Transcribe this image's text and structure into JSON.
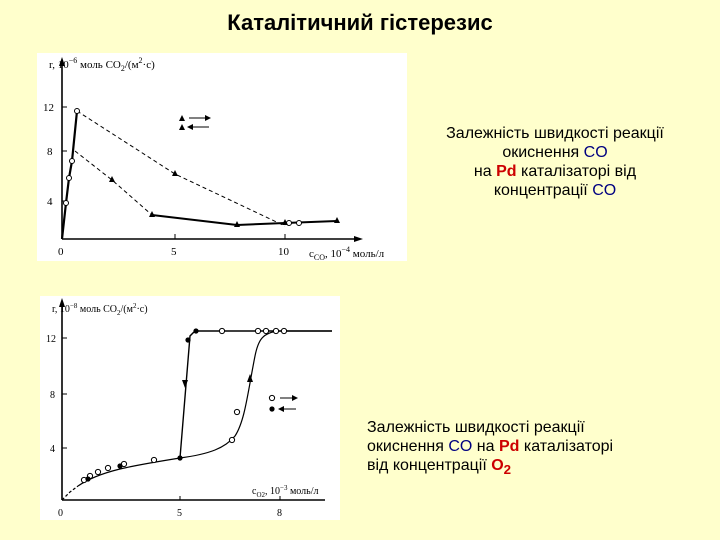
{
  "title": "Каталітичний гістерезис",
  "caption1": {
    "line1": "Залежність швидкості реакції",
    "line2a": "окиснення ",
    "co_a": "CO",
    "line3a": "на ",
    "pd": "Pd",
    "line3b": " каталізаторі від",
    "line4a": "концентрації ",
    "co_b": "CO"
  },
  "caption2": {
    "line1": "Залежність швидкості реакції",
    "line2a": "окиснення ",
    "co": "CO",
    "line2b": " на ",
    "pd": "Pd",
    "line2c": " каталізаторі",
    "line3a": "від концентрації ",
    "o2": "O",
    "o2_sub": "2"
  },
  "chart_data": [
    {
      "type": "line",
      "ylabel": "r, 10⁻⁶ моль CO₂/(м²·с)",
      "xlabel": "c_CO, 10⁻⁴ моль/л",
      "xlim": [
        0,
        13
      ],
      "ylim": [
        0,
        14
      ],
      "x_ticks": [
        0,
        5,
        10
      ],
      "y_ticks": [
        4,
        8,
        12
      ],
      "legend": {
        "placement": "top-right",
        "entries": [
          "forward",
          "reverse"
        ]
      },
      "series": [
        {
          "marker": "open-circle-solid-line",
          "points": [
            [
              0,
              0
            ],
            [
              0.3,
              4.5
            ],
            [
              0.6,
              7
            ],
            [
              0.8,
              9
            ],
            [
              1,
              11.3
            ]
          ]
        },
        {
          "marker": "triangle-dashed",
          "points": [
            [
              1,
              11.3
            ],
            [
              5,
              7.6
            ],
            [
              10,
              2
            ]
          ]
        },
        {
          "marker": "triangle-dashed",
          "points": [
            [
              0.8,
              8
            ],
            [
              2.5,
              5.5
            ],
            [
              4.2,
              2.2
            ]
          ]
        },
        {
          "marker": "triangle-solid",
          "points": [
            [
              4.2,
              2.2
            ],
            [
              8,
              1.7
            ],
            [
              10,
              1.9
            ],
            [
              12,
              2
            ]
          ]
        },
        {
          "marker": "open-circle-solid",
          "points": [
            [
              10,
              1.9
            ],
            [
              10.5,
              2
            ],
            [
              12,
              2.1
            ]
          ]
        }
      ]
    },
    {
      "type": "line",
      "ylabel": "r, 10⁻⁸ моль CO₂/(м²·с)",
      "xlabel": "c_O₂, 10⁻³ моль/л",
      "xlim": [
        0,
        10
      ],
      "ylim": [
        0,
        14
      ],
      "x_ticks": [
        0,
        5,
        8
      ],
      "y_ticks": [
        4,
        8,
        12
      ],
      "legend": {
        "placement": "right",
        "entries": [
          "open circles →",
          "filled circles ←"
        ]
      },
      "series": [
        {
          "marker": "open-circle",
          "points": [
            [
              0.3,
              0.6
            ],
            [
              0.8,
              1.3
            ],
            [
              1.2,
              1.8
            ],
            [
              1.6,
              2.2
            ],
            [
              2.2,
              2.6
            ],
            [
              3,
              2.9
            ],
            [
              4,
              3.2
            ],
            [
              5,
              3.4
            ],
            [
              6,
              3.8
            ],
            [
              6.8,
              4.8
            ],
            [
              7.3,
              6.5
            ],
            [
              7.7,
              9
            ],
            [
              7.9,
              12.5
            ],
            [
              8.2,
              12.5
            ],
            [
              8.6,
              12.5
            ],
            [
              9.5,
              12.5
            ]
          ]
        },
        {
          "marker": "filled-circle",
          "points": [
            [
              9.5,
              12.5
            ],
            [
              8,
              12.5
            ],
            [
              6,
              12.5
            ],
            [
              5.5,
              12.5
            ],
            [
              5.2,
              11.8
            ],
            [
              5,
              3.4
            ],
            [
              4,
              3.3
            ],
            [
              2.5,
              2.8
            ],
            [
              1,
              1.7
            ],
            [
              0.3,
              0.6
            ]
          ]
        }
      ]
    }
  ]
}
